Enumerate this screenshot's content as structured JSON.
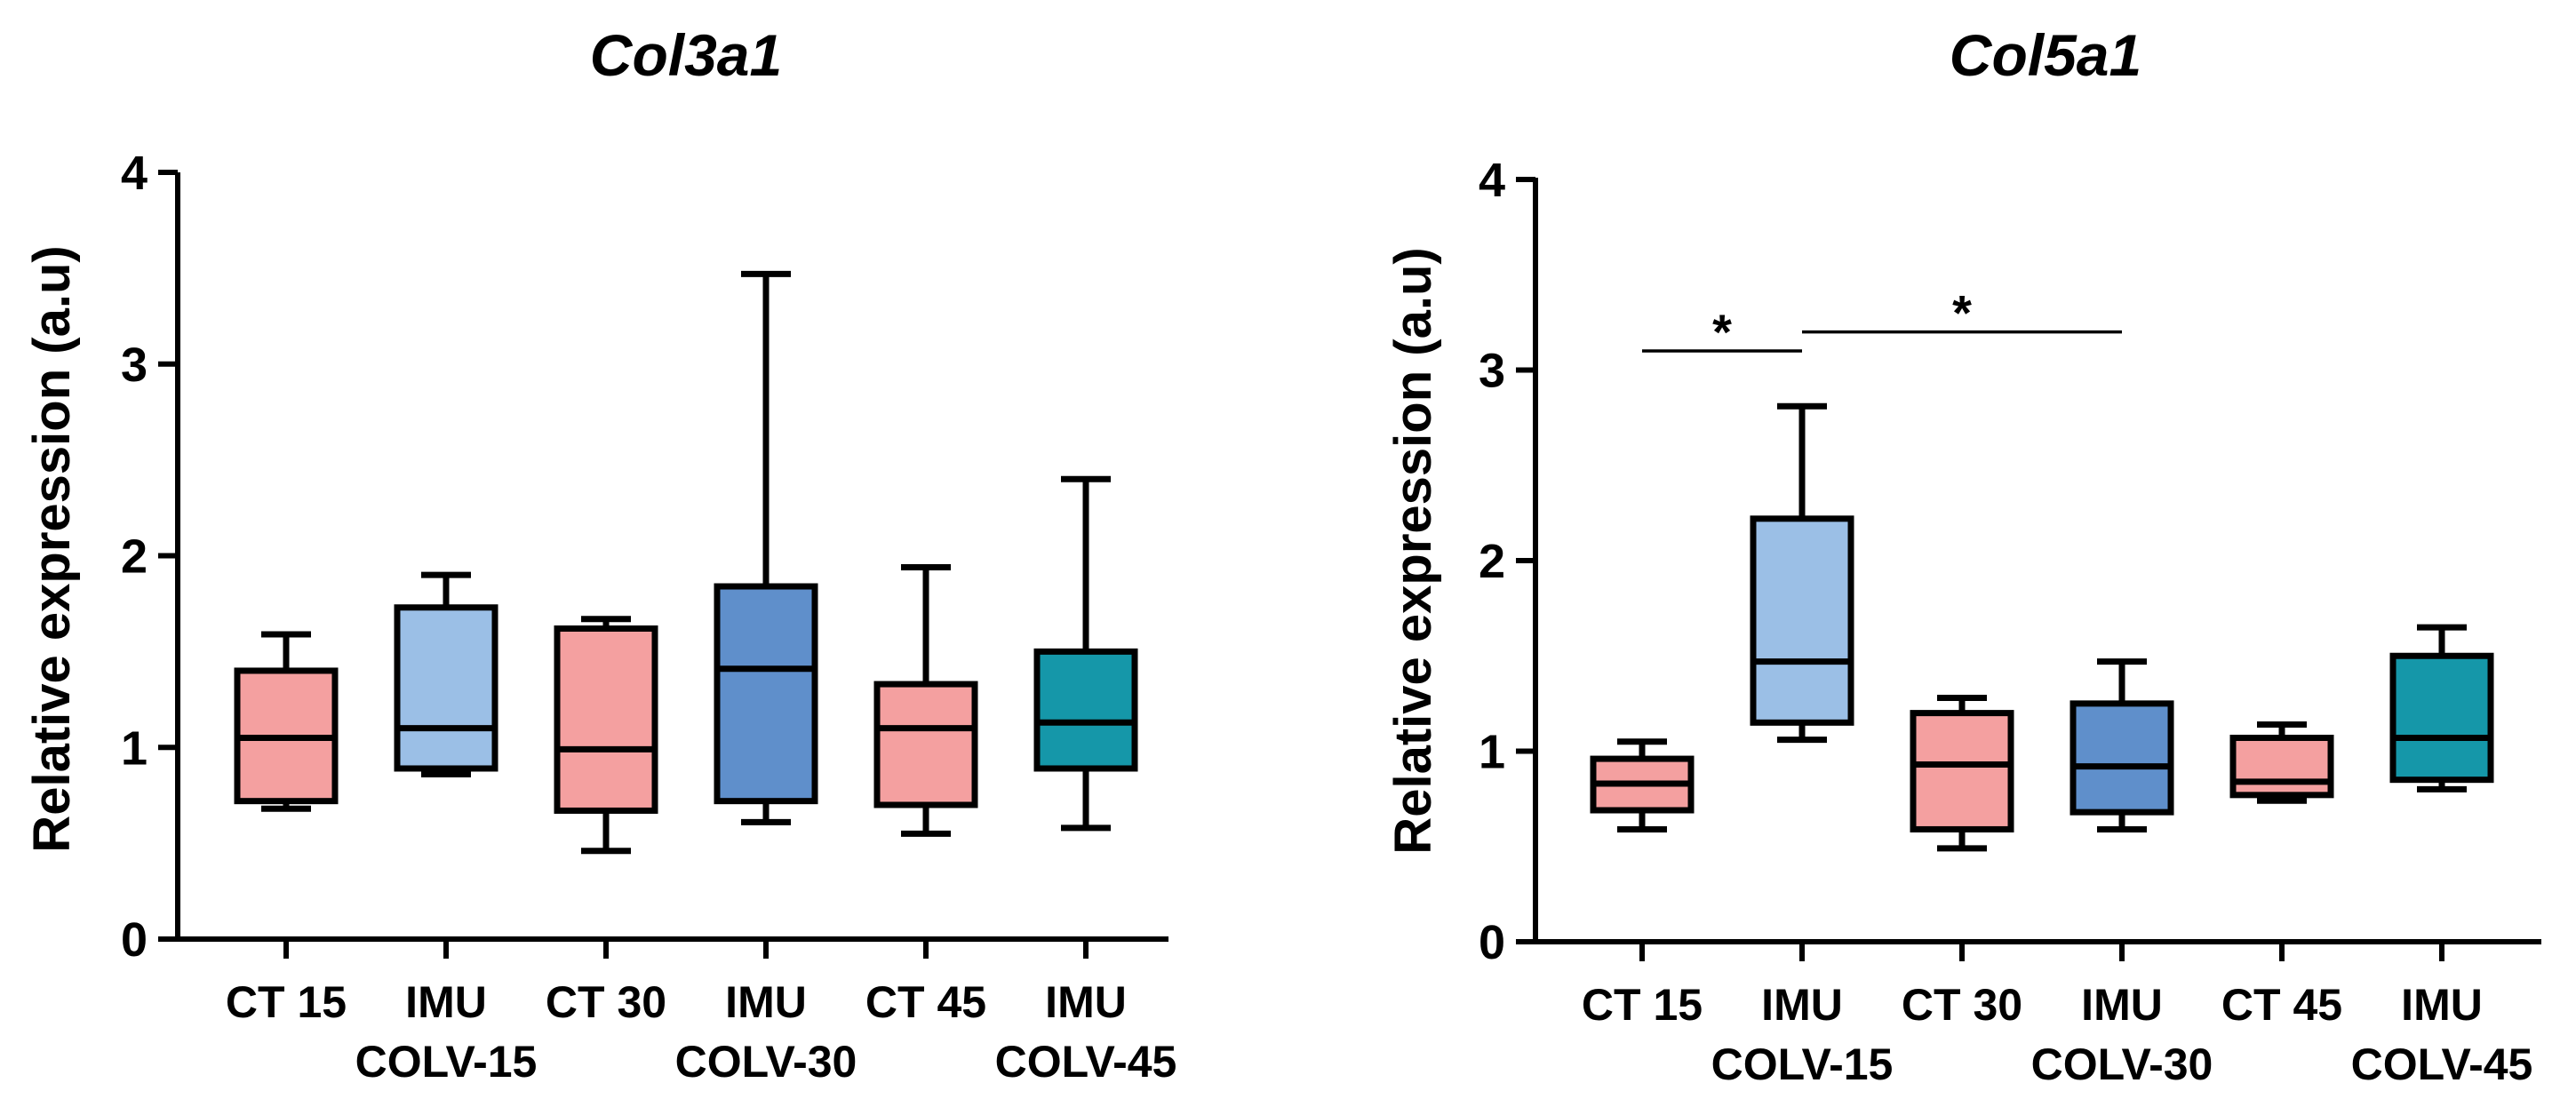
{
  "chart_data": [
    {
      "type": "box",
      "title": "Col3a1",
      "ylabel": "Relative expression (a.u)",
      "ylim": [
        0,
        4
      ],
      "yticks": [
        "0",
        "1",
        "2",
        "3",
        "4"
      ],
      "categories": [
        {
          "line1": "CT 15",
          "line2": ""
        },
        {
          "line1": "IMU",
          "line2": "COLV-15"
        },
        {
          "line1": "CT 30",
          "line2": ""
        },
        {
          "line1": "IMU",
          "line2": "COLV-30"
        },
        {
          "line1": "CT 45",
          "line2": ""
        },
        {
          "line1": "IMU",
          "line2": "COLV-45"
        }
      ],
      "boxes": [
        {
          "min": 0.68,
          "q1": 0.72,
          "median": 1.05,
          "q3": 1.4,
          "max": 1.59,
          "color": "#f4a0a0"
        },
        {
          "min": 0.86,
          "q1": 0.89,
          "median": 1.1,
          "q3": 1.73,
          "max": 1.9,
          "color": "#9bbfe6"
        },
        {
          "min": 0.46,
          "q1": 0.67,
          "median": 0.99,
          "q3": 1.62,
          "max": 1.67,
          "color": "#f4a0a0"
        },
        {
          "min": 0.61,
          "q1": 0.72,
          "median": 1.41,
          "q3": 1.84,
          "max": 3.47,
          "color": "#5f8fcb"
        },
        {
          "min": 0.55,
          "q1": 0.7,
          "median": 1.1,
          "q3": 1.33,
          "max": 1.94,
          "color": "#f4a0a0"
        },
        {
          "min": 0.58,
          "q1": 0.89,
          "median": 1.13,
          "q3": 1.5,
          "max": 2.4,
          "color": "#1597a9"
        }
      ],
      "significance": []
    },
    {
      "type": "box",
      "title": "Col5a1",
      "ylabel": "Relative expression (a.u)",
      "ylim": [
        0,
        4
      ],
      "yticks": [
        "0",
        "1",
        "2",
        "3",
        "4"
      ],
      "categories": [
        {
          "line1": "CT 15",
          "line2": ""
        },
        {
          "line1": "IMU",
          "line2": "COLV-15"
        },
        {
          "line1": "CT 30",
          "line2": ""
        },
        {
          "line1": "IMU",
          "line2": "COLV-30"
        },
        {
          "line1": "CT 45",
          "line2": ""
        },
        {
          "line1": "IMU",
          "line2": "COLV-45"
        }
      ],
      "boxes": [
        {
          "min": 0.59,
          "q1": 0.69,
          "median": 0.83,
          "q3": 0.96,
          "max": 1.05,
          "color": "#f4a0a0"
        },
        {
          "min": 1.06,
          "q1": 1.15,
          "median": 1.47,
          "q3": 2.22,
          "max": 2.81,
          "color": "#9bbfe6"
        },
        {
          "min": 0.49,
          "q1": 0.59,
          "median": 0.93,
          "q3": 1.2,
          "max": 1.28,
          "color": "#f4a0a0"
        },
        {
          "min": 0.59,
          "q1": 0.68,
          "median": 0.92,
          "q3": 1.25,
          "max": 1.47,
          "color": "#5f8fcb"
        },
        {
          "min": 0.74,
          "q1": 0.77,
          "median": 0.84,
          "q3": 1.07,
          "max": 1.14,
          "color": "#f4a0a0"
        },
        {
          "min": 0.8,
          "q1": 0.85,
          "median": 1.07,
          "q3": 1.5,
          "max": 1.65,
          "color": "#1597a9"
        }
      ],
      "significance": [
        {
          "from": 0,
          "to": 1,
          "y": 3.1,
          "label": "*"
        },
        {
          "from": 1,
          "to": 3,
          "y": 3.2,
          "label": "*"
        }
      ]
    }
  ]
}
